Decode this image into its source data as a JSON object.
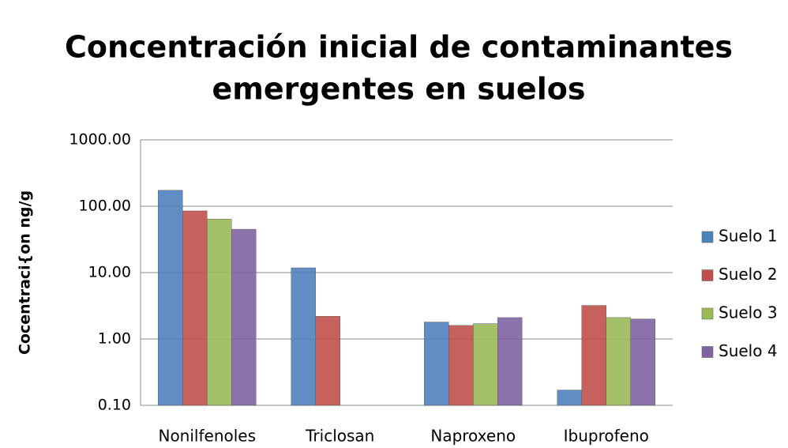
{
  "chart_data": {
    "type": "bar",
    "title": [
      "Concentración inicial de contaminantes",
      "emergentes en suelos"
    ],
    "y_label": "Cocentraci{on ng/g",
    "categories": [
      "Nonilfenoles",
      "Triclosan",
      "Naproxeno",
      "Ibuprofeno"
    ],
    "series": [
      {
        "name": "Suelo 1",
        "color": "#4f81bd",
        "values": [
          174,
          11.8,
          1.8,
          0.17
        ]
      },
      {
        "name": "Suelo 2",
        "color": "#c0504d",
        "values": [
          85,
          2.2,
          1.6,
          3.2
        ]
      },
      {
        "name": "Suelo 3",
        "color": "#9bbb59",
        "values": [
          64,
          null,
          1.7,
          2.1
        ]
      },
      {
        "name": "Suelo 4",
        "color": "#8064a2",
        "values": [
          45,
          null,
          2.1,
          2.0
        ]
      }
    ],
    "ylim": [
      0.1,
      1000
    ],
    "log_y": true,
    "yticks": [
      {
        "value": 0.1,
        "label": "0.10"
      },
      {
        "value": 1,
        "label": "1.00"
      },
      {
        "value": 10,
        "label": "10.00"
      },
      {
        "value": 100,
        "label": "100.00"
      },
      {
        "value": 1000,
        "label": "1000.00"
      }
    ],
    "grid": true,
    "legend": "right"
  }
}
